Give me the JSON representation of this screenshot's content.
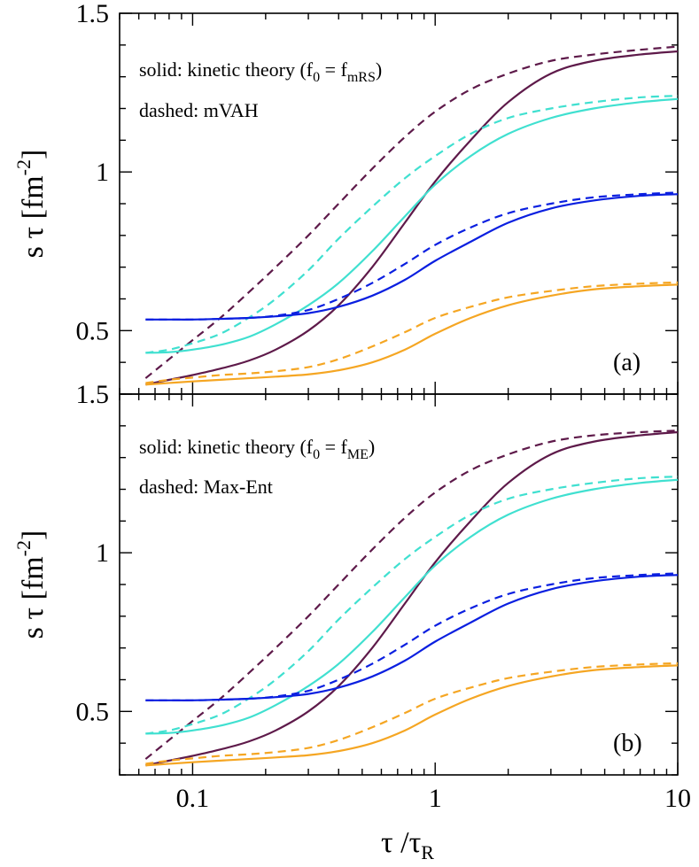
{
  "chart_data": [
    {
      "type": "line",
      "panel_label": "(a)",
      "annotation_solid_prefix": "solid: kinetic theory (f",
      "annotation_solid_sub0": "0",
      "annotation_solid_mid": " = f",
      "annotation_solid_sub1": "mRS",
      "annotation_solid_suffix": ")",
      "annotation_dashed": "dashed: mVAH",
      "ylabel": "s τ [fm",
      "ylabel_exp": "-2",
      "ylabel_close": "]",
      "xscale": "log",
      "xlim": [
        0.05,
        10
      ],
      "ylim": [
        0.3,
        1.5
      ],
      "yticks": [
        0.5,
        1,
        1.5
      ],
      "ytick_labels": [
        "0.5",
        "1",
        "1.5"
      ],
      "x": [
        0.064,
        0.08,
        0.1,
        0.13,
        0.17,
        0.22,
        0.3,
        0.4,
        0.55,
        0.75,
        1.0,
        1.4,
        2.0,
        3.0,
        4.5,
        7.0,
        10.0
      ],
      "series": [
        {
          "name": "purple kinetic",
          "style": "solid",
          "color": "#5e1a4a",
          "values": [
            0.33,
            0.345,
            0.36,
            0.38,
            0.405,
            0.44,
            0.5,
            0.58,
            0.7,
            0.84,
            0.97,
            1.1,
            1.22,
            1.31,
            1.35,
            1.37,
            1.38
          ]
        },
        {
          "name": "purple mVAH",
          "style": "dashed",
          "color": "#5e1a4a",
          "values": [
            0.35,
            0.41,
            0.47,
            0.54,
            0.62,
            0.7,
            0.8,
            0.9,
            1.01,
            1.11,
            1.19,
            1.26,
            1.31,
            1.35,
            1.37,
            1.385,
            1.395
          ]
        },
        {
          "name": "cyan kinetic",
          "style": "solid",
          "color": "#40e0d0",
          "values": [
            0.43,
            0.432,
            0.44,
            0.455,
            0.48,
            0.52,
            0.58,
            0.65,
            0.75,
            0.86,
            0.96,
            1.05,
            1.12,
            1.17,
            1.2,
            1.22,
            1.23
          ]
        },
        {
          "name": "cyan mVAH",
          "style": "dashed",
          "color": "#40e0d0",
          "values": [
            0.43,
            0.44,
            0.46,
            0.49,
            0.54,
            0.6,
            0.69,
            0.79,
            0.89,
            0.98,
            1.05,
            1.12,
            1.17,
            1.2,
            1.22,
            1.235,
            1.24
          ]
        },
        {
          "name": "blue kinetic",
          "style": "solid",
          "color": "#0a1fe0",
          "values": [
            0.535,
            0.535,
            0.535,
            0.537,
            0.54,
            0.545,
            0.555,
            0.575,
            0.61,
            0.66,
            0.72,
            0.78,
            0.84,
            0.885,
            0.91,
            0.925,
            0.93
          ]
        },
        {
          "name": "blue mVAH",
          "style": "dashed",
          "color": "#0a1fe0",
          "values": [
            0.535,
            0.535,
            0.535,
            0.537,
            0.54,
            0.547,
            0.565,
            0.6,
            0.65,
            0.71,
            0.77,
            0.825,
            0.87,
            0.9,
            0.92,
            0.93,
            0.935
          ]
        },
        {
          "name": "orange kinetic",
          "style": "solid",
          "color": "#f5a623",
          "values": [
            0.33,
            0.335,
            0.34,
            0.345,
            0.35,
            0.355,
            0.362,
            0.375,
            0.4,
            0.44,
            0.49,
            0.54,
            0.58,
            0.61,
            0.63,
            0.64,
            0.645
          ]
        },
        {
          "name": "orange mVAH",
          "style": "dashed",
          "color": "#f5a623",
          "values": [
            0.335,
            0.345,
            0.352,
            0.36,
            0.365,
            0.372,
            0.385,
            0.41,
            0.45,
            0.495,
            0.54,
            0.575,
            0.605,
            0.625,
            0.64,
            0.648,
            0.652
          ]
        }
      ]
    },
    {
      "type": "line",
      "panel_label": "(b)",
      "annotation_solid_prefix": "solid: kinetic theory (f",
      "annotation_solid_sub0": "0",
      "annotation_solid_mid": " = f",
      "annotation_solid_sub1": "ME",
      "annotation_solid_suffix": ")",
      "annotation_dashed": "dashed: Max-Ent",
      "ylabel": "s τ [fm",
      "ylabel_exp": "-2",
      "ylabel_close": "]",
      "xlabel": "τ /τ",
      "xlabel_sub": "R",
      "xscale": "log",
      "xlim": [
        0.05,
        10
      ],
      "ylim": [
        0.3,
        1.5
      ],
      "yticks": [
        0.5,
        1,
        1.5
      ],
      "ytick_labels": [
        "0.5",
        "1",
        "1.5"
      ],
      "xticks": [
        0.1,
        1,
        10
      ],
      "xtick_labels": [
        "0.1",
        "1",
        "10"
      ],
      "x": [
        0.064,
        0.08,
        0.1,
        0.13,
        0.17,
        0.22,
        0.3,
        0.4,
        0.55,
        0.75,
        1.0,
        1.4,
        2.0,
        3.0,
        4.5,
        7.0,
        10.0
      ],
      "series": [
        {
          "name": "purple kinetic",
          "style": "solid",
          "color": "#5e1a4a",
          "values": [
            0.33,
            0.345,
            0.36,
            0.38,
            0.405,
            0.44,
            0.5,
            0.58,
            0.7,
            0.84,
            0.97,
            1.1,
            1.22,
            1.31,
            1.35,
            1.37,
            1.38
          ]
        },
        {
          "name": "purple Max-Ent",
          "style": "dashed",
          "color": "#5e1a4a",
          "values": [
            0.35,
            0.41,
            0.47,
            0.54,
            0.62,
            0.7,
            0.8,
            0.9,
            1.01,
            1.11,
            1.19,
            1.26,
            1.31,
            1.35,
            1.37,
            1.38,
            1.385
          ]
        },
        {
          "name": "cyan kinetic",
          "style": "solid",
          "color": "#40e0d0",
          "values": [
            0.43,
            0.432,
            0.44,
            0.455,
            0.48,
            0.52,
            0.58,
            0.65,
            0.75,
            0.86,
            0.96,
            1.05,
            1.12,
            1.17,
            1.2,
            1.22,
            1.23
          ]
        },
        {
          "name": "cyan Max-Ent",
          "style": "dashed",
          "color": "#40e0d0",
          "values": [
            0.43,
            0.44,
            0.46,
            0.49,
            0.54,
            0.6,
            0.69,
            0.79,
            0.89,
            0.98,
            1.05,
            1.12,
            1.17,
            1.2,
            1.22,
            1.235,
            1.24
          ]
        },
        {
          "name": "blue kinetic",
          "style": "solid",
          "color": "#0a1fe0",
          "values": [
            0.535,
            0.535,
            0.535,
            0.537,
            0.54,
            0.545,
            0.555,
            0.575,
            0.61,
            0.66,
            0.72,
            0.78,
            0.84,
            0.885,
            0.91,
            0.925,
            0.93
          ]
        },
        {
          "name": "blue Max-Ent",
          "style": "dashed",
          "color": "#0a1fe0",
          "values": [
            0.535,
            0.535,
            0.535,
            0.537,
            0.54,
            0.547,
            0.565,
            0.6,
            0.65,
            0.71,
            0.77,
            0.825,
            0.87,
            0.9,
            0.92,
            0.93,
            0.935
          ]
        },
        {
          "name": "orange kinetic",
          "style": "solid",
          "color": "#f5a623",
          "values": [
            0.33,
            0.335,
            0.34,
            0.345,
            0.35,
            0.355,
            0.362,
            0.375,
            0.4,
            0.44,
            0.49,
            0.54,
            0.58,
            0.61,
            0.63,
            0.64,
            0.645
          ]
        },
        {
          "name": "orange Max-Ent",
          "style": "dashed",
          "color": "#f5a623",
          "values": [
            0.335,
            0.345,
            0.352,
            0.36,
            0.365,
            0.372,
            0.385,
            0.41,
            0.45,
            0.495,
            0.54,
            0.575,
            0.605,
            0.625,
            0.64,
            0.648,
            0.652
          ]
        }
      ]
    }
  ]
}
